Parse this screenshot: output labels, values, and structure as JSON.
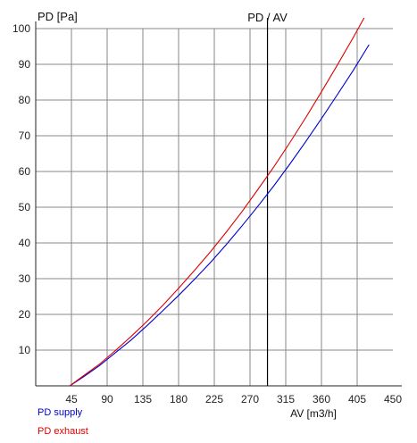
{
  "chart_data": {
    "type": "line",
    "title": "PD / AV",
    "ylabel": "PD [Pa]",
    "xlabel": "AV [m3/h]",
    "xlim": [
      0,
      450
    ],
    "ylim": [
      0,
      100
    ],
    "x_ticks": [
      45,
      90,
      135,
      180,
      225,
      270,
      315,
      360,
      405,
      450
    ],
    "y_ticks": [
      10,
      20,
      30,
      40,
      50,
      60,
      70,
      80,
      90,
      100
    ],
    "grid": true,
    "operating_point_x": 292,
    "legend_position": "bottom-left",
    "series": [
      {
        "name": "PD supply",
        "color": "#0000cc",
        "points": [
          [
            43,
            0
          ],
          [
            60,
            2.5
          ],
          [
            80,
            5.6
          ],
          [
            100,
            9.2
          ],
          [
            120,
            12.8
          ],
          [
            140,
            16.8
          ],
          [
            160,
            21.0
          ],
          [
            180,
            25.3
          ],
          [
            200,
            29.8
          ],
          [
            220,
            34.5
          ],
          [
            240,
            39.5
          ],
          [
            260,
            44.8
          ],
          [
            280,
            50.3
          ],
          [
            300,
            56.0
          ],
          [
            320,
            62.0
          ],
          [
            340,
            68.3
          ],
          [
            360,
            74.8
          ],
          [
            380,
            81.5
          ],
          [
            400,
            88.3
          ],
          [
            420,
            95.5
          ]
        ]
      },
      {
        "name": "PD exhaust",
        "color": "#dd0000",
        "points": [
          [
            43,
            0
          ],
          [
            60,
            2.8
          ],
          [
            80,
            6.0
          ],
          [
            100,
            9.8
          ],
          [
            120,
            13.8
          ],
          [
            140,
            18.0
          ],
          [
            160,
            22.5
          ],
          [
            180,
            27.3
          ],
          [
            200,
            32.3
          ],
          [
            220,
            37.5
          ],
          [
            240,
            43.0
          ],
          [
            260,
            48.8
          ],
          [
            280,
            55.0
          ],
          [
            300,
            61.3
          ],
          [
            320,
            68.0
          ],
          [
            340,
            75.0
          ],
          [
            360,
            82.3
          ],
          [
            380,
            89.8
          ],
          [
            400,
            97.5
          ],
          [
            415,
            103.5
          ]
        ]
      }
    ]
  }
}
